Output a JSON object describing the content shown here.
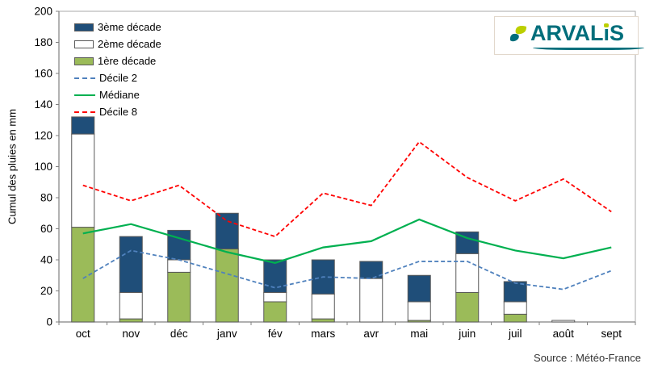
{
  "ylabel": "Cumul des pluies en mm",
  "source": "Source : Météo-France",
  "logo": {
    "text": "ARVALIS",
    "part1": "ARVAL",
    "part2": "ı",
    "part3": "S",
    "teal": "#006E7B",
    "green": "#BCCF00"
  },
  "colors": {
    "axis": "#808080",
    "plot_border": "#aaaaaa",
    "bar_border": "#595959",
    "text": "#000000"
  },
  "chart_data": {
    "type": "bar",
    "subtype": "stacked-bars-with-lines",
    "title": "",
    "xlabel": "",
    "ylabel": "Cumul des pluies en mm",
    "categories": [
      "oct",
      "nov",
      "déc",
      "janv",
      "fév",
      "mars",
      "avr",
      "mai",
      "juin",
      "juil",
      "août",
      "sept"
    ],
    "bar_series": [
      {
        "name": "1ère décade",
        "color": "#9BBB59",
        "values": [
          61,
          2,
          32,
          47,
          13,
          2,
          0,
          1,
          19,
          5,
          0,
          0
        ]
      },
      {
        "name": "2ème décade",
        "color": "#FFFFFF",
        "values": [
          60,
          17,
          8,
          0,
          6,
          16,
          28,
          12,
          25,
          8,
          1,
          0
        ]
      },
      {
        "name": "3ème décade",
        "color": "#1F4E79",
        "values": [
          11,
          36,
          19,
          23,
          21,
          22,
          11,
          17,
          14,
          13,
          0,
          0
        ]
      }
    ],
    "line_series": [
      {
        "name": "Décile 2",
        "style": "dashed",
        "color": "#4F81BD",
        "values": [
          28,
          46,
          40,
          31,
          22,
          29,
          28,
          39,
          39,
          25,
          21,
          33
        ]
      },
      {
        "name": "Médiane",
        "style": "solid",
        "color": "#00B050",
        "values": [
          57,
          63,
          54,
          45,
          38,
          48,
          52,
          66,
          54,
          46,
          41,
          48
        ]
      },
      {
        "name": "Décile 8",
        "style": "dashed",
        "color": "#FF0000",
        "values": [
          88,
          78,
          88,
          65,
          55,
          83,
          75,
          116,
          93,
          78,
          92,
          71
        ]
      }
    ],
    "ylim": [
      0,
      200
    ],
    "yticks": [
      0,
      20,
      40,
      60,
      80,
      100,
      120,
      140,
      160,
      180,
      200
    ],
    "grid": false,
    "legend_position": "top-left-inside",
    "bar_totals": [
      132,
      55,
      59,
      70,
      40,
      40,
      39,
      30,
      58,
      26,
      1,
      0
    ]
  }
}
